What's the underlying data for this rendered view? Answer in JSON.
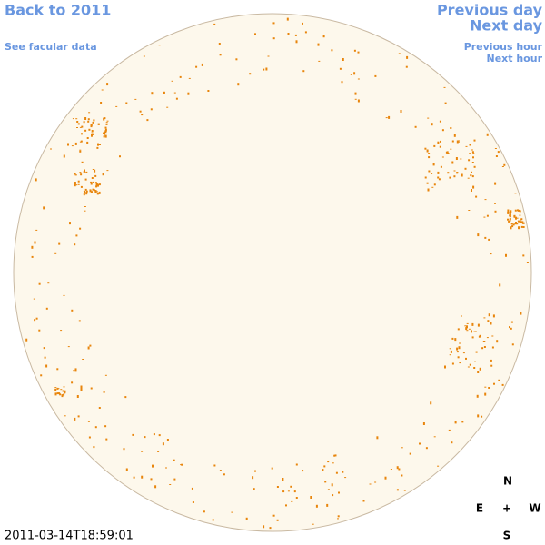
{
  "nav": {
    "back": "Back to 2011",
    "facular": "See facular data",
    "previous_day": "Previous day",
    "next_day": "Next day",
    "previous_hour": "Previous hour",
    "next_hour": "Next hour"
  },
  "timestamp": "2011-03-14T18:59:01",
  "compass": {
    "north": "N",
    "east": "E",
    "center": "+",
    "west": "W",
    "south": "S"
  }
}
